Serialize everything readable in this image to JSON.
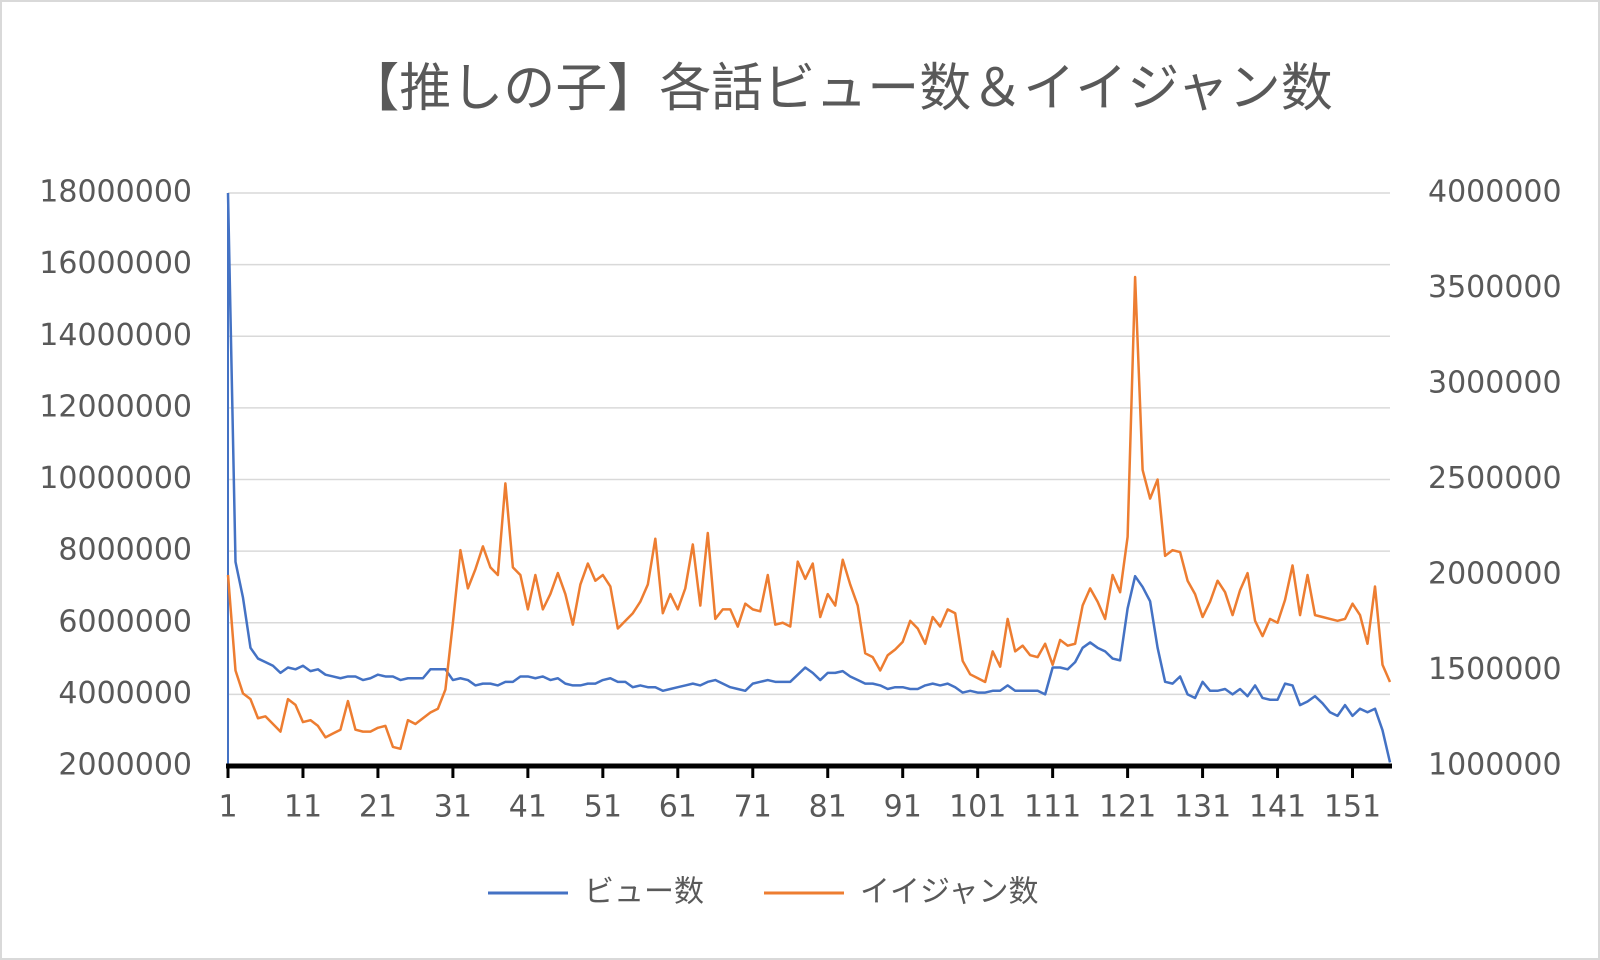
{
  "chart_data": {
    "type": "line",
    "title": "【推しの子】各話ビュー数＆イイジャン数",
    "x": [
      1,
      2,
      3,
      4,
      5,
      6,
      7,
      8,
      9,
      10,
      11,
      12,
      13,
      14,
      15,
      16,
      17,
      18,
      19,
      20,
      21,
      22,
      23,
      24,
      25,
      26,
      27,
      28,
      29,
      30,
      31,
      32,
      33,
      34,
      35,
      36,
      37,
      38,
      39,
      40,
      41,
      42,
      43,
      44,
      45,
      46,
      47,
      48,
      49,
      50,
      51,
      52,
      53,
      54,
      55,
      56,
      57,
      58,
      59,
      60,
      61,
      62,
      63,
      64,
      65,
      66,
      67,
      68,
      69,
      70,
      71,
      72,
      73,
      74,
      75,
      76,
      77,
      78,
      79,
      80,
      81,
      82,
      83,
      84,
      85,
      86,
      87,
      88,
      89,
      90,
      91,
      92,
      93,
      94,
      95,
      96,
      97,
      98,
      99,
      100,
      101,
      102,
      103,
      104,
      105,
      106,
      107,
      108,
      109,
      110,
      111,
      112,
      113,
      114,
      115,
      116,
      117,
      118,
      119,
      120,
      121,
      122,
      123,
      124,
      125,
      126,
      127,
      128,
      129,
      130,
      131,
      132,
      133,
      134,
      135,
      136,
      137,
      138,
      139,
      140,
      141,
      142,
      143,
      144,
      145,
      146,
      147,
      148,
      149,
      150,
      151,
      152,
      153,
      154,
      155,
      156
    ],
    "xlim": [
      1,
      156
    ],
    "xticks": [
      1,
      11,
      21,
      31,
      41,
      51,
      61,
      71,
      81,
      91,
      101,
      111,
      121,
      131,
      141,
      151
    ],
    "ylim": [
      2000000,
      18000000
    ],
    "yticks": [
      2000000,
      4000000,
      6000000,
      8000000,
      10000000,
      12000000,
      14000000,
      16000000,
      18000000
    ],
    "y2lim": [
      1000000,
      4000000
    ],
    "y2ticks": [
      1000000,
      1500000,
      2000000,
      2500000,
      3000000,
      3500000,
      4000000
    ],
    "grid": true,
    "legend": "bottom",
    "series": [
      {
        "name": "ビュー数",
        "color": "#4472c4",
        "values": [
          18000000.0,
          7700000.0,
          6700000.0,
          5300000.0,
          5000000.0,
          4900000.0,
          4800000.0,
          4600000.0,
          4750000.0,
          4700000.0,
          4800000.0,
          4650000.0,
          4700000.0,
          4550000.0,
          4500000.0,
          4450000.0,
          4500000.0,
          4500000.0,
          4400000.0,
          4450000.0,
          4550000.0,
          4500000.0,
          4500000.0,
          4400000.0,
          4450000.0,
          4450000.0,
          4450000.0,
          4700000.0,
          4700000.0,
          4700000.0,
          4400000.0,
          4450000.0,
          4400000.0,
          4250000.0,
          4300000.0,
          4300000.0,
          4250000.0,
          4350000.0,
          4350000.0,
          4500000.0,
          4500000.0,
          4450000.0,
          4500000.0,
          4400000.0,
          4450000.0,
          4300000.0,
          4250000.0,
          4250000.0,
          4300000.0,
          4300000.0,
          4400000.0,
          4450000.0,
          4350000.0,
          4350000.0,
          4200000.0,
          4250000.0,
          4200000.0,
          4200000.0,
          4100000.0,
          4150000.0,
          4200000.0,
          4250000.0,
          4300000.0,
          4250000.0,
          4350000.0,
          4400000.0,
          4300000.0,
          4200000.0,
          4150000.0,
          4100000.0,
          4300000.0,
          4350000.0,
          4400000.0,
          4350000.0,
          4350000.0,
          4350000.0,
          4550000.0,
          4750000.0,
          4600000.0,
          4400000.0,
          4600000.0,
          4600000.0,
          4650000.0,
          4500000.0,
          4400000.0,
          4300000.0,
          4300000.0,
          4250000.0,
          4150000.0,
          4200000.0,
          4200000.0,
          4150000.0,
          4150000.0,
          4250000.0,
          4300000.0,
          4250000.0,
          4300000.0,
          4200000.0,
          4050000.0,
          4100000.0,
          4050000.0,
          4050000.0,
          4100000.0,
          4100000.0,
          4250000.0,
          4100000.0,
          4100000.0,
          4100000.0,
          4100000.0,
          4000000.0,
          4750000.0,
          4750000.0,
          4700000.0,
          4900000.0,
          5300000.0,
          5450000.0,
          5300000.0,
          5200000.0,
          5000000.0,
          4950000.0,
          6400000.0,
          7300000.0,
          7000000.0,
          6600000.0,
          5300000.0,
          4350000.0,
          4300000.0,
          4500000.0,
          4000000.0,
          3900000.0,
          4350000.0,
          4100000.0,
          4100000.0,
          4150000.0,
          4000000.0,
          4150000.0,
          3950000.0,
          4250000.0,
          3900000.0,
          3850000.0,
          3850000.0,
          4300000.0,
          4250000.0,
          3700000.0,
          3800000.0,
          3950000.0,
          3750000.0,
          3500000.0,
          3400000.0,
          3700000.0,
          3400000.0,
          3600000.0,
          3500000.0,
          3600000.0,
          3000000.0,
          2100000.0
        ]
      },
      {
        "name": "イイジャン数",
        "color": "#ed7d31",
        "axis": "y2",
        "values": [
          2000000.0,
          1500000.0,
          1380000.0,
          1350000.0,
          1250000.0,
          1260000.0,
          1220000.0,
          1180000.0,
          1350000.0,
          1320000.0,
          1230000.0,
          1240000.0,
          1210000.0,
          1150000.0,
          1170000.0,
          1190000.0,
          1340000.0,
          1190000.0,
          1180000.0,
          1180000.0,
          1200000.0,
          1210000.0,
          1100000.0,
          1090000.0,
          1240000.0,
          1220000.0,
          1250000.0,
          1280000.0,
          1300000.0,
          1400000.0,
          1750000.0,
          2130000.0,
          1930000.0,
          2030000.0,
          2150000.0,
          2040000.0,
          2000000.0,
          2480000.0,
          2040000.0,
          2000000.0,
          1820000.0,
          2000000.0,
          1820000.0,
          1900000.0,
          2010000.0,
          1900000.0,
          1740000.0,
          1950000.0,
          2060000.0,
          1970000.0,
          2000000.0,
          1940000.0,
          1720000.0,
          1760000.0,
          1800000.0,
          1860000.0,
          1950000.0,
          2190000.0,
          1800000.0,
          1900000.0,
          1820000.0,
          1930000.0,
          2160000.0,
          1840000.0,
          2220000.0,
          1770000.0,
          1820000.0,
          1820000.0,
          1730000.0,
          1850000.0,
          1820000.0,
          1810000.0,
          2000000.0,
          1740000.0,
          1750000.0,
          1730000.0,
          2070000.0,
          1980000.0,
          2060000.0,
          1780000.0,
          1900000.0,
          1840000.0,
          2080000.0,
          1950000.0,
          1840000.0,
          1590000.0,
          1570000.0,
          1500000.0,
          1580000.0,
          1610000.0,
          1650000.0,
          1760000.0,
          1720000.0,
          1640000.0,
          1780000.0,
          1730000.0,
          1820000.0,
          1800000.0,
          1550000.0,
          1480000.0,
          1460000.0,
          1440000.0,
          1600000.0,
          1520000.0,
          1770000.0,
          1600000.0,
          1630000.0,
          1580000.0,
          1570000.0,
          1640000.0,
          1530000.0,
          1660000.0,
          1630000.0,
          1640000.0,
          1840000.0,
          1930000.0,
          1860000.0,
          1770000.0,
          2000000.0,
          1910000.0,
          2200000.0,
          3560000.0,
          2550000.0,
          2400000.0,
          2500000.0,
          2100000.0,
          2130000.0,
          2120000.0,
          1970000.0,
          1900000.0,
          1780000.0,
          1860000.0,
          1970000.0,
          1910000.0,
          1790000.0,
          1920000.0,
          2010000.0,
          1760000.0,
          1680000.0,
          1770000.0,
          1750000.0,
          1870000.0,
          2050000.0,
          1790000.0,
          2000000.0,
          1790000.0,
          1780000.0,
          1770000.0,
          1760000.0,
          1770000.0,
          1850000.0,
          1790000.0,
          1640000.0,
          1940000.0,
          1530000.0,
          1440000.0
        ]
      }
    ]
  }
}
